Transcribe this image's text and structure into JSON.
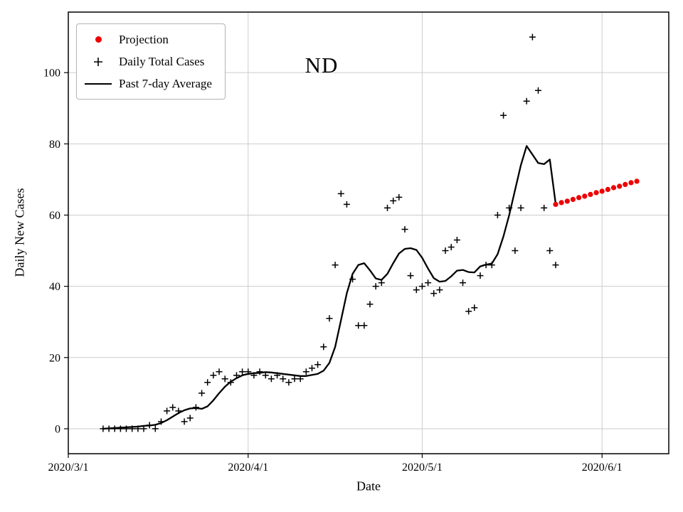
{
  "figure": {
    "background": "#ffffff",
    "grid_color": "#cccccc",
    "border_color": "#000000"
  },
  "legend": {
    "items": [
      {
        "label": "Projection",
        "marker": "dot",
        "color": "#ee0000"
      },
      {
        "label": "Daily Total Cases",
        "marker": "plus",
        "color": "#000000"
      },
      {
        "label": "Past 7-day Average",
        "marker": "line",
        "color": "#000000"
      }
    ]
  },
  "chart_data": {
    "type": "line+scatter",
    "title": "ND",
    "xlabel": "Date",
    "ylabel": "Daily New Cases",
    "x_unit": "days since 2020/3/1",
    "xlim": [
      0,
      103.5
    ],
    "ylim": [
      -7,
      117
    ],
    "grid": true,
    "legend_position": "upper-left",
    "x_ticks": [
      {
        "pos": 0,
        "label": "2020/3/1"
      },
      {
        "pos": 31,
        "label": "2020/4/1"
      },
      {
        "pos": 61,
        "label": "2020/5/1"
      },
      {
        "pos": 92,
        "label": "2020/6/1"
      }
    ],
    "y_ticks": [
      0,
      20,
      40,
      60,
      80,
      100
    ],
    "series": [
      {
        "name": "Daily Total Cases",
        "type": "scatter",
        "marker": "plus",
        "color": "#000000",
        "x": [
          6,
          7,
          8,
          9,
          10,
          11,
          12,
          13,
          14,
          15,
          16,
          17,
          18,
          19,
          20,
          21,
          22,
          23,
          24,
          25,
          26,
          27,
          28,
          29,
          30,
          31,
          32,
          33,
          34,
          35,
          36,
          37,
          38,
          39,
          40,
          41,
          42,
          43,
          44,
          45,
          46,
          47,
          48,
          49,
          50,
          51,
          52,
          53,
          54,
          55,
          56,
          57,
          58,
          59,
          60,
          61,
          62,
          63,
          64,
          65,
          66,
          67,
          68,
          69,
          70,
          71,
          72,
          73,
          74,
          75,
          76,
          77,
          78,
          79,
          80,
          81,
          82,
          83,
          84
        ],
        "y": [
          0,
          0,
          0,
          0,
          0,
          0,
          0,
          0,
          1,
          0,
          2,
          5,
          6,
          5,
          2,
          3,
          6,
          10,
          13,
          15,
          16,
          14,
          13,
          15,
          16,
          16,
          15,
          16,
          15,
          14,
          15,
          14,
          13,
          14,
          14,
          16,
          17,
          18,
          23,
          31,
          46,
          66,
          63,
          42,
          29,
          29,
          35,
          40,
          41,
          62,
          64,
          65,
          56,
          43,
          39,
          40,
          41,
          38,
          39,
          50,
          51,
          53,
          41,
          33,
          34,
          43,
          46,
          46,
          60,
          88,
          62,
          50,
          62,
          92,
          110,
          95,
          62,
          50,
          46
        ]
      },
      {
        "name": "Past 7-day Average",
        "type": "line",
        "marker": "none",
        "color": "#000000",
        "x": [
          6,
          7,
          8,
          9,
          10,
          11,
          12,
          13,
          14,
          15,
          16,
          17,
          18,
          19,
          20,
          21,
          22,
          23,
          24,
          25,
          26,
          27,
          28,
          29,
          30,
          31,
          32,
          33,
          34,
          35,
          36,
          37,
          38,
          39,
          40,
          41,
          42,
          43,
          44,
          45,
          46,
          47,
          48,
          49,
          50,
          51,
          52,
          53,
          54,
          55,
          56,
          57,
          58,
          59,
          60,
          61,
          62,
          63,
          64,
          65,
          66,
          67,
          68,
          69,
          70,
          71,
          72,
          73,
          74,
          75,
          76,
          77,
          78,
          79,
          80,
          81,
          82,
          83,
          84
        ],
        "y": [
          0.0,
          0.1,
          0.2,
          0.3,
          0.4,
          0.5,
          0.6,
          0.8,
          0.9,
          1.1,
          1.6,
          2.4,
          3.4,
          4.4,
          5.2,
          5.7,
          5.8,
          5.6,
          6.3,
          8.0,
          10.0,
          11.8,
          13.2,
          14.2,
          15.0,
          15.4,
          15.6,
          15.7,
          15.9,
          15.8,
          15.6,
          15.4,
          15.2,
          15.0,
          14.8,
          14.8,
          15.1,
          15.4,
          16.3,
          18.5,
          23.0,
          30.5,
          38.0,
          43.5,
          46.0,
          46.5,
          44.5,
          42.2,
          41.8,
          43.5,
          46.5,
          49.2,
          50.5,
          50.7,
          50.2,
          48.0,
          45.0,
          42.3,
          41.3,
          41.5,
          42.8,
          44.4,
          44.6,
          44.0,
          43.9,
          45.6,
          46.1,
          46.4,
          49.0,
          54.0,
          60.0,
          67.0,
          74.0,
          79.4,
          77.0,
          74.6,
          74.3,
          75.6,
          63.2
        ]
      },
      {
        "name": "Projection",
        "type": "scatter",
        "marker": "dot",
        "color": "#ee0000",
        "x": [
          84,
          85,
          86,
          87,
          88,
          89,
          90,
          91,
          92,
          93,
          94,
          95,
          96,
          97,
          98
        ],
        "y": [
          63.0,
          63.5,
          63.9,
          64.4,
          64.9,
          65.3,
          65.8,
          66.3,
          66.7,
          67.2,
          67.7,
          68.1,
          68.6,
          69.1,
          69.5
        ]
      }
    ]
  }
}
